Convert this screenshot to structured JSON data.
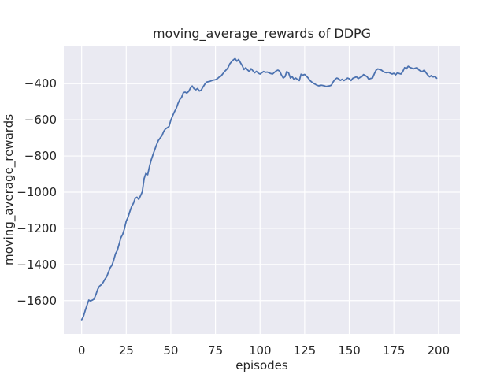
{
  "figure": {
    "background_color": "#ffffff"
  },
  "chart_data": {
    "type": "line",
    "title": "moving_average_rewards of DDPG",
    "xlabel": "episodes",
    "ylabel": "moving_average_rewards",
    "xlim": [
      -10,
      212
    ],
    "ylim": [
      -1784,
      -190
    ],
    "grid": true,
    "legend": null,
    "xticks": {
      "values": [
        0,
        25,
        50,
        75,
        100,
        125,
        150,
        175,
        200
      ],
      "labels": [
        "0",
        "25",
        "50",
        "75",
        "100",
        "125",
        "150",
        "175",
        "200"
      ]
    },
    "yticks": {
      "values": [
        -400,
        -600,
        -800,
        -1000,
        -1200,
        -1400,
        -1600
      ],
      "labels": [
        "−400",
        "−600",
        "−800",
        "−1000",
        "−1200",
        "−1400",
        "−1600"
      ]
    },
    "style": {
      "plot_bg_color": "#eaeaf2",
      "grid_color": "#ffffff",
      "line_color": "#4c72b0",
      "text_color": "#262626",
      "line_width": 1.8,
      "grid_width": 1.2
    },
    "series": [
      {
        "name": "moving_average_rewards",
        "x_start": 0,
        "x_step": 1,
        "values": [
          -1705,
          -1688,
          -1655,
          -1625,
          -1597,
          -1602,
          -1597,
          -1591,
          -1566,
          -1538,
          -1520,
          -1512,
          -1500,
          -1482,
          -1468,
          -1444,
          -1418,
          -1404,
          -1376,
          -1340,
          -1322,
          -1288,
          -1252,
          -1233,
          -1203,
          -1160,
          -1138,
          -1108,
          -1080,
          -1062,
          -1035,
          -1028,
          -1040,
          -1020,
          -998,
          -925,
          -896,
          -904,
          -858,
          -822,
          -792,
          -764,
          -738,
          -714,
          -700,
          -688,
          -664,
          -650,
          -644,
          -636,
          -602,
          -578,
          -556,
          -538,
          -510,
          -488,
          -477,
          -450,
          -447,
          -452,
          -443,
          -424,
          -413,
          -428,
          -434,
          -427,
          -441,
          -436,
          -419,
          -404,
          -391,
          -389,
          -387,
          -383,
          -380,
          -378,
          -373,
          -364,
          -359,
          -347,
          -334,
          -324,
          -312,
          -291,
          -279,
          -269,
          -261,
          -276,
          -266,
          -284,
          -300,
          -322,
          -312,
          -324,
          -333,
          -317,
          -329,
          -340,
          -332,
          -342,
          -347,
          -340,
          -333,
          -337,
          -336,
          -340,
          -344,
          -347,
          -338,
          -330,
          -325,
          -331,
          -352,
          -369,
          -361,
          -333,
          -341,
          -369,
          -361,
          -376,
          -369,
          -377,
          -383,
          -348,
          -353,
          -349,
          -358,
          -369,
          -383,
          -391,
          -398,
          -404,
          -409,
          -412,
          -408,
          -410,
          -412,
          -416,
          -414,
          -412,
          -408,
          -390,
          -377,
          -369,
          -373,
          -382,
          -376,
          -383,
          -377,
          -369,
          -373,
          -383,
          -370,
          -366,
          -362,
          -372,
          -366,
          -362,
          -350,
          -355,
          -362,
          -376,
          -371,
          -369,
          -347,
          -326,
          -318,
          -322,
          -325,
          -333,
          -338,
          -340,
          -337,
          -342,
          -347,
          -343,
          -351,
          -340,
          -344,
          -347,
          -333,
          -311,
          -318,
          -304,
          -310,
          -314,
          -318,
          -314,
          -311,
          -324,
          -331,
          -333,
          -325,
          -340,
          -352,
          -362,
          -355,
          -363,
          -360,
          -370
        ]
      }
    ]
  }
}
